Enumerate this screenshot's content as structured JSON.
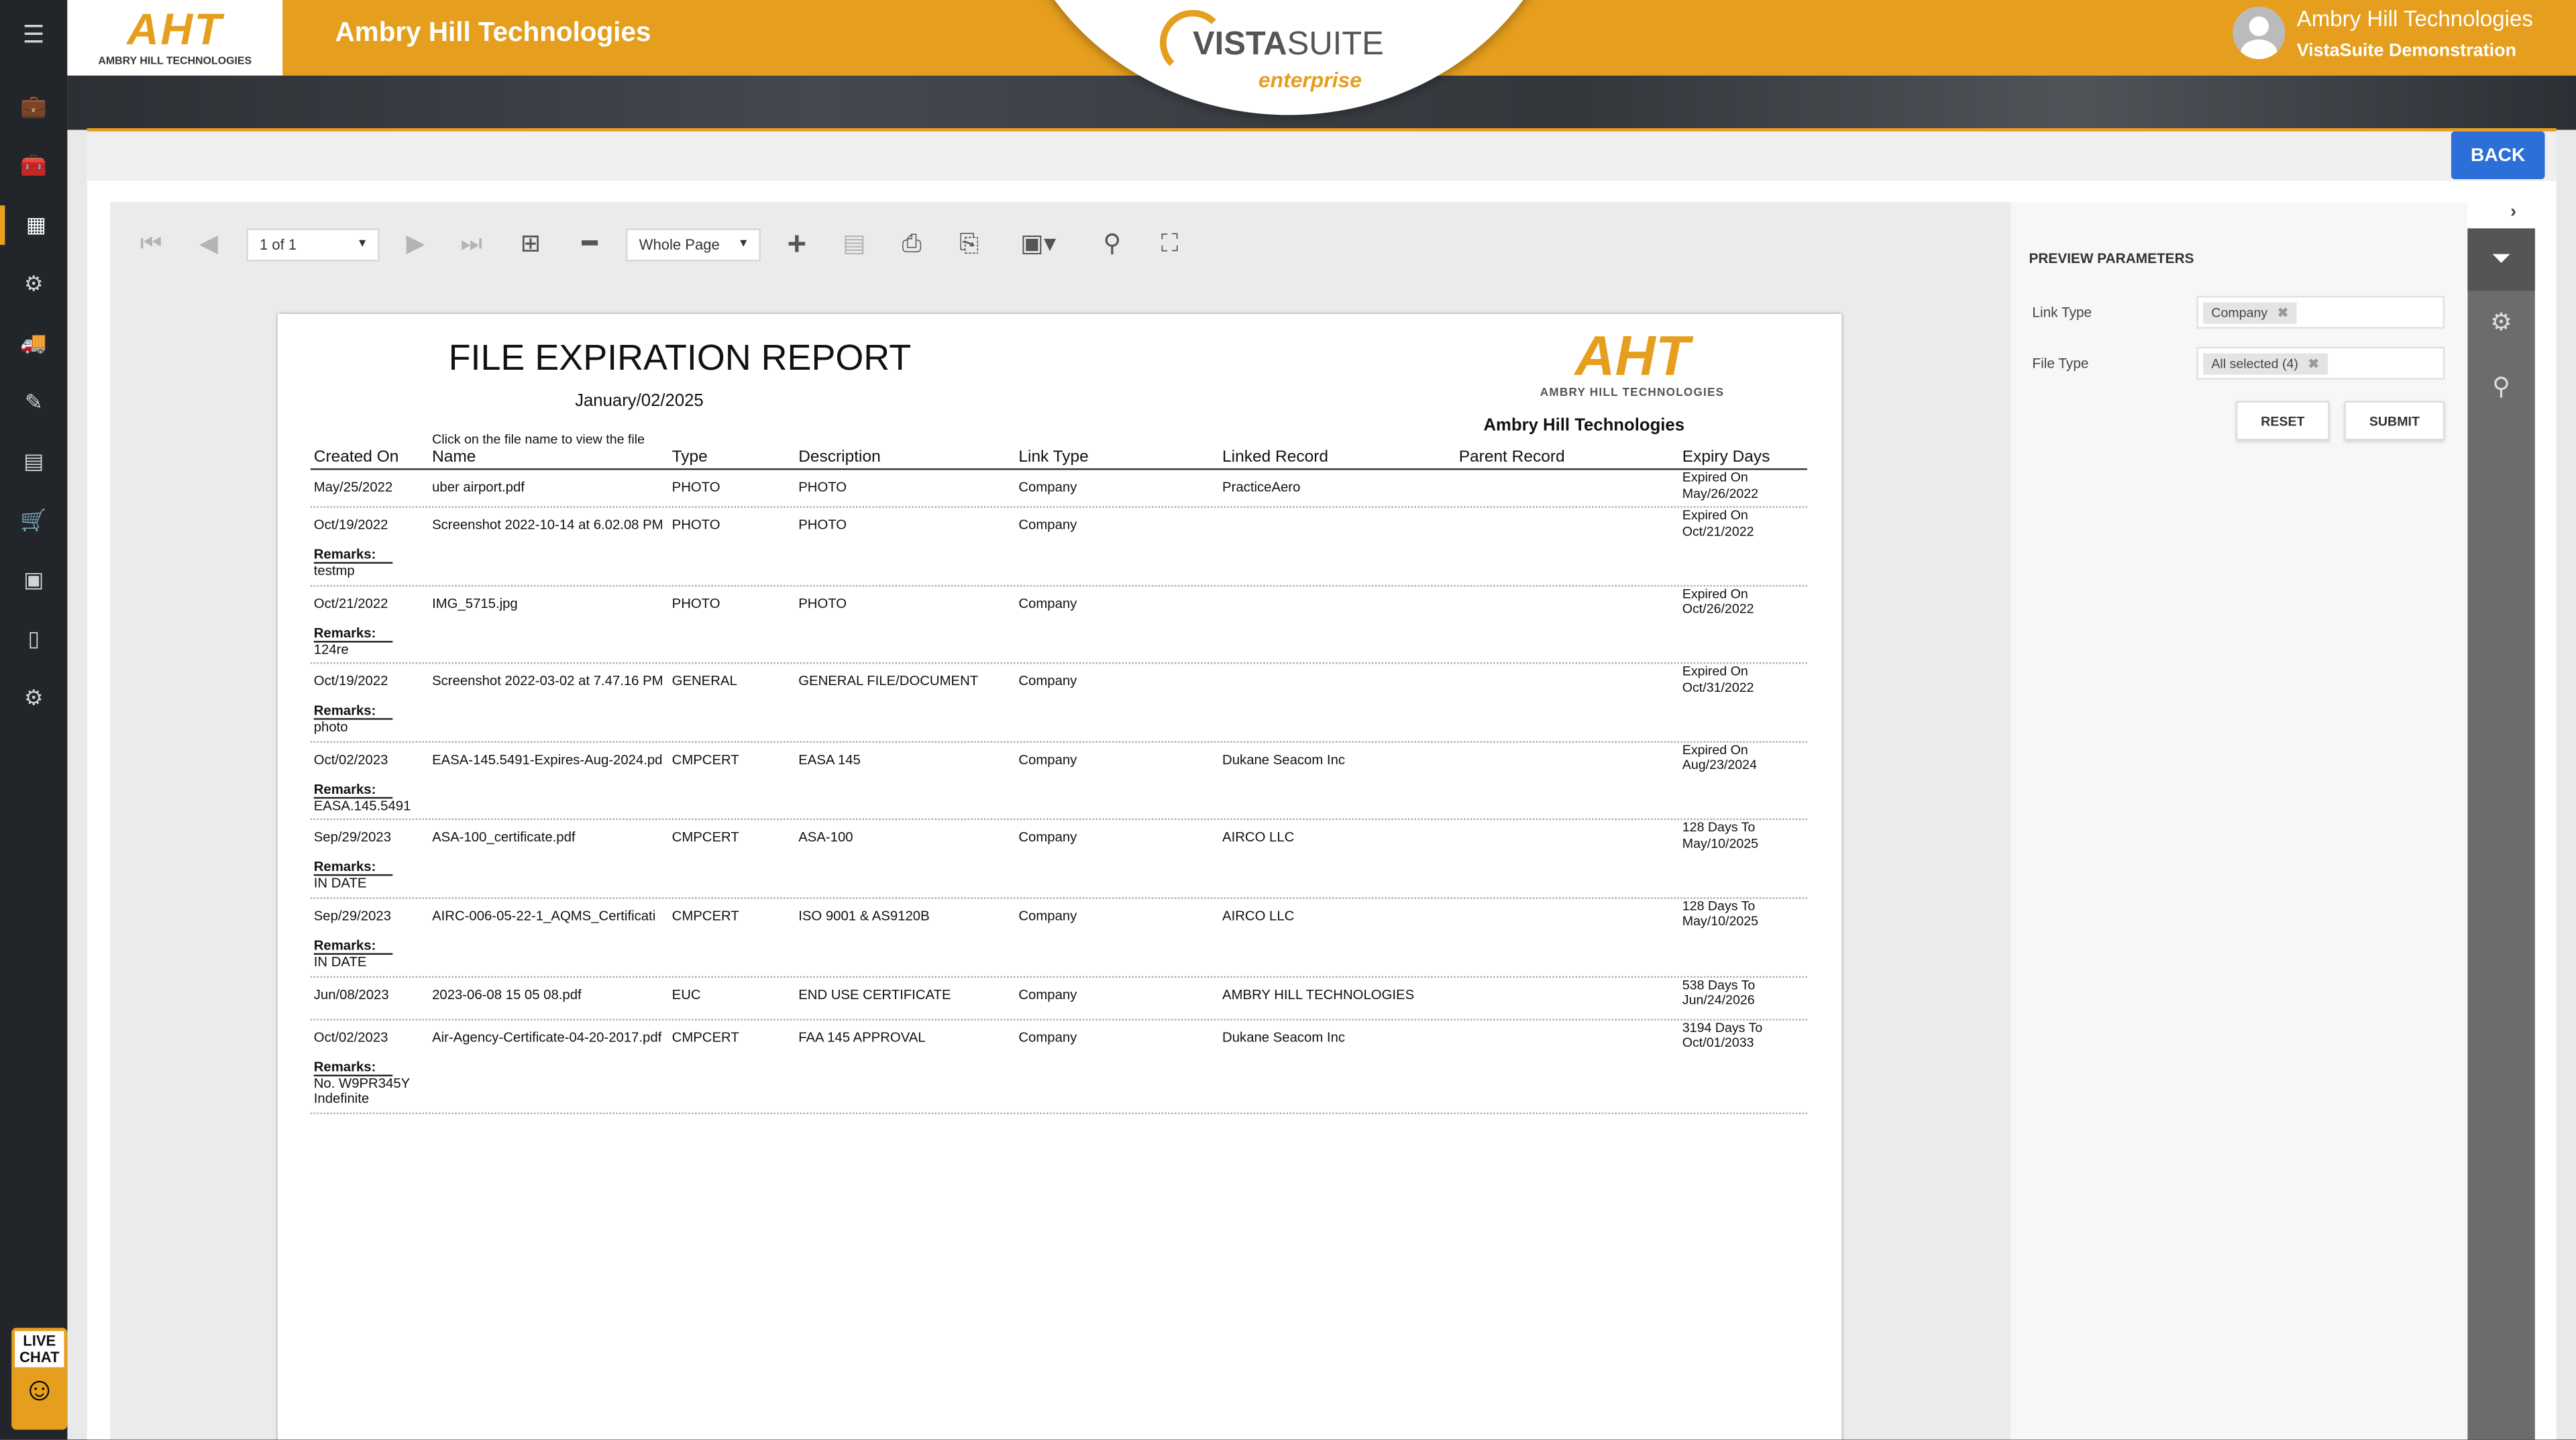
{
  "app": {
    "title": "Ambry Hill Technologies",
    "logo_text": "AHT",
    "logo_sub": "AMBRY HILL TECHNOLOGIES"
  },
  "brand": {
    "vista": "VISTA",
    "suite": "SUITE",
    "enterprise": "enterprise",
    "accent": "#e59e1e",
    "button_blue": "#2d6fd8"
  },
  "user": {
    "name": "Ambry Hill Technologies",
    "subtitle": "VistaSuite Demonstration"
  },
  "sidebar": {
    "items": [
      "menu-icon",
      "briefcase-icon",
      "toolbox-icon",
      "building-icon",
      "gears-icon",
      "truck-icon",
      "edit-icon",
      "warehouse-icon",
      "cart-icon",
      "calendar-icon",
      "document-icon",
      "settings-icon"
    ],
    "active_index": 3
  },
  "live_chat": {
    "line1": "LIVE",
    "line2": "CHAT"
  },
  "header": {
    "back_label": "BACK"
  },
  "toolbar": {
    "page_select": "1 of 1",
    "zoom_select": "Whole Page"
  },
  "report": {
    "title": "FILE EXPIRATION REPORT",
    "date": "January/02/2025",
    "company": "Ambry Hill Technologies",
    "hint": "Click on the file name to view the file",
    "remarks_label": "Remarks:",
    "columns": [
      "Created On",
      "Name",
      "Type",
      "Description",
      "Link Type",
      "Linked Record",
      "Parent Record",
      "Expiry Days"
    ],
    "rows": [
      {
        "created_on": "May/25/2022",
        "name": "uber airport.pdf",
        "type": "PHOTO",
        "description": "PHOTO",
        "link_type": "Company",
        "linked_record": "PracticeAero",
        "parent_record": "",
        "expiry_1": "Expired On",
        "expiry_2": "May/26/2022",
        "remarks": []
      },
      {
        "created_on": "Oct/19/2022",
        "name": "Screenshot 2022-10-14 at 6.02.08 PM",
        "type": "PHOTO",
        "description": "PHOTO",
        "link_type": "Company",
        "linked_record": "",
        "parent_record": "",
        "expiry_1": "Expired On",
        "expiry_2": "Oct/21/2022",
        "remarks": [
          "testmp"
        ]
      },
      {
        "created_on": "Oct/21/2022",
        "name": "IMG_5715.jpg",
        "type": "PHOTO",
        "description": "PHOTO",
        "link_type": "Company",
        "linked_record": "",
        "parent_record": "",
        "expiry_1": "Expired On",
        "expiry_2": "Oct/26/2022",
        "remarks": [
          "124re"
        ]
      },
      {
        "created_on": "Oct/19/2022",
        "name": "Screenshot 2022-03-02 at 7.47.16 PM",
        "type": "GENERAL",
        "description": "GENERAL FILE/DOCUMENT",
        "link_type": "Company",
        "linked_record": "",
        "parent_record": "",
        "expiry_1": "Expired On",
        "expiry_2": "Oct/31/2022",
        "remarks": [
          "photo"
        ]
      },
      {
        "created_on": "Oct/02/2023",
        "name": "EASA-145.5491-Expires-Aug-2024.pd",
        "type": "CMPCERT",
        "description": "EASA 145",
        "link_type": "Company",
        "linked_record": "Dukane Seacom Inc",
        "parent_record": "",
        "expiry_1": "Expired On",
        "expiry_2": "Aug/23/2024",
        "remarks": [
          "EASA.145.5491"
        ]
      },
      {
        "created_on": "Sep/29/2023",
        "name": "ASA-100_certificate.pdf",
        "type": "CMPCERT",
        "description": "ASA-100",
        "link_type": "Company",
        "linked_record": "AIRCO LLC",
        "parent_record": "",
        "expiry_1": "128 Days To",
        "expiry_2": "May/10/2025",
        "remarks": [
          "IN DATE"
        ]
      },
      {
        "created_on": "Sep/29/2023",
        "name": "AIRC-006-05-22-1_AQMS_Certificati",
        "type": "CMPCERT",
        "description": "ISO 9001 & AS9120B",
        "link_type": "Company",
        "linked_record": "AIRCO LLC",
        "parent_record": "",
        "expiry_1": "128 Days To",
        "expiry_2": "May/10/2025",
        "remarks": [
          "IN DATE"
        ]
      },
      {
        "created_on": "Jun/08/2023",
        "name": "2023-06-08 15 05 08.pdf",
        "type": "EUC",
        "description": "END USE CERTIFICATE",
        "link_type": "Company",
        "linked_record": "AMBRY HILL TECHNOLOGIES",
        "parent_record": "",
        "expiry_1": "538 Days To",
        "expiry_2": "Jun/24/2026",
        "remarks": []
      },
      {
        "created_on": "Oct/02/2023",
        "name": "Air-Agency-Certificate-04-20-2017.pdf",
        "type": "CMPCERT",
        "description": "FAA 145 APPROVAL",
        "link_type": "Company",
        "linked_record": "Dukane Seacom Inc",
        "parent_record": "",
        "expiry_1": "3194 Days To",
        "expiry_2": "Oct/01/2033",
        "remarks": [
          "No. W9PR345Y",
          "Indefinite"
        ]
      }
    ]
  },
  "params": {
    "title": "PREVIEW PARAMETERS",
    "link_type_label": "Link Type",
    "link_type_value": "Company",
    "file_type_label": "File Type",
    "file_type_value": "All selected (4)",
    "reset_label": "RESET",
    "submit_label": "SUBMIT"
  }
}
